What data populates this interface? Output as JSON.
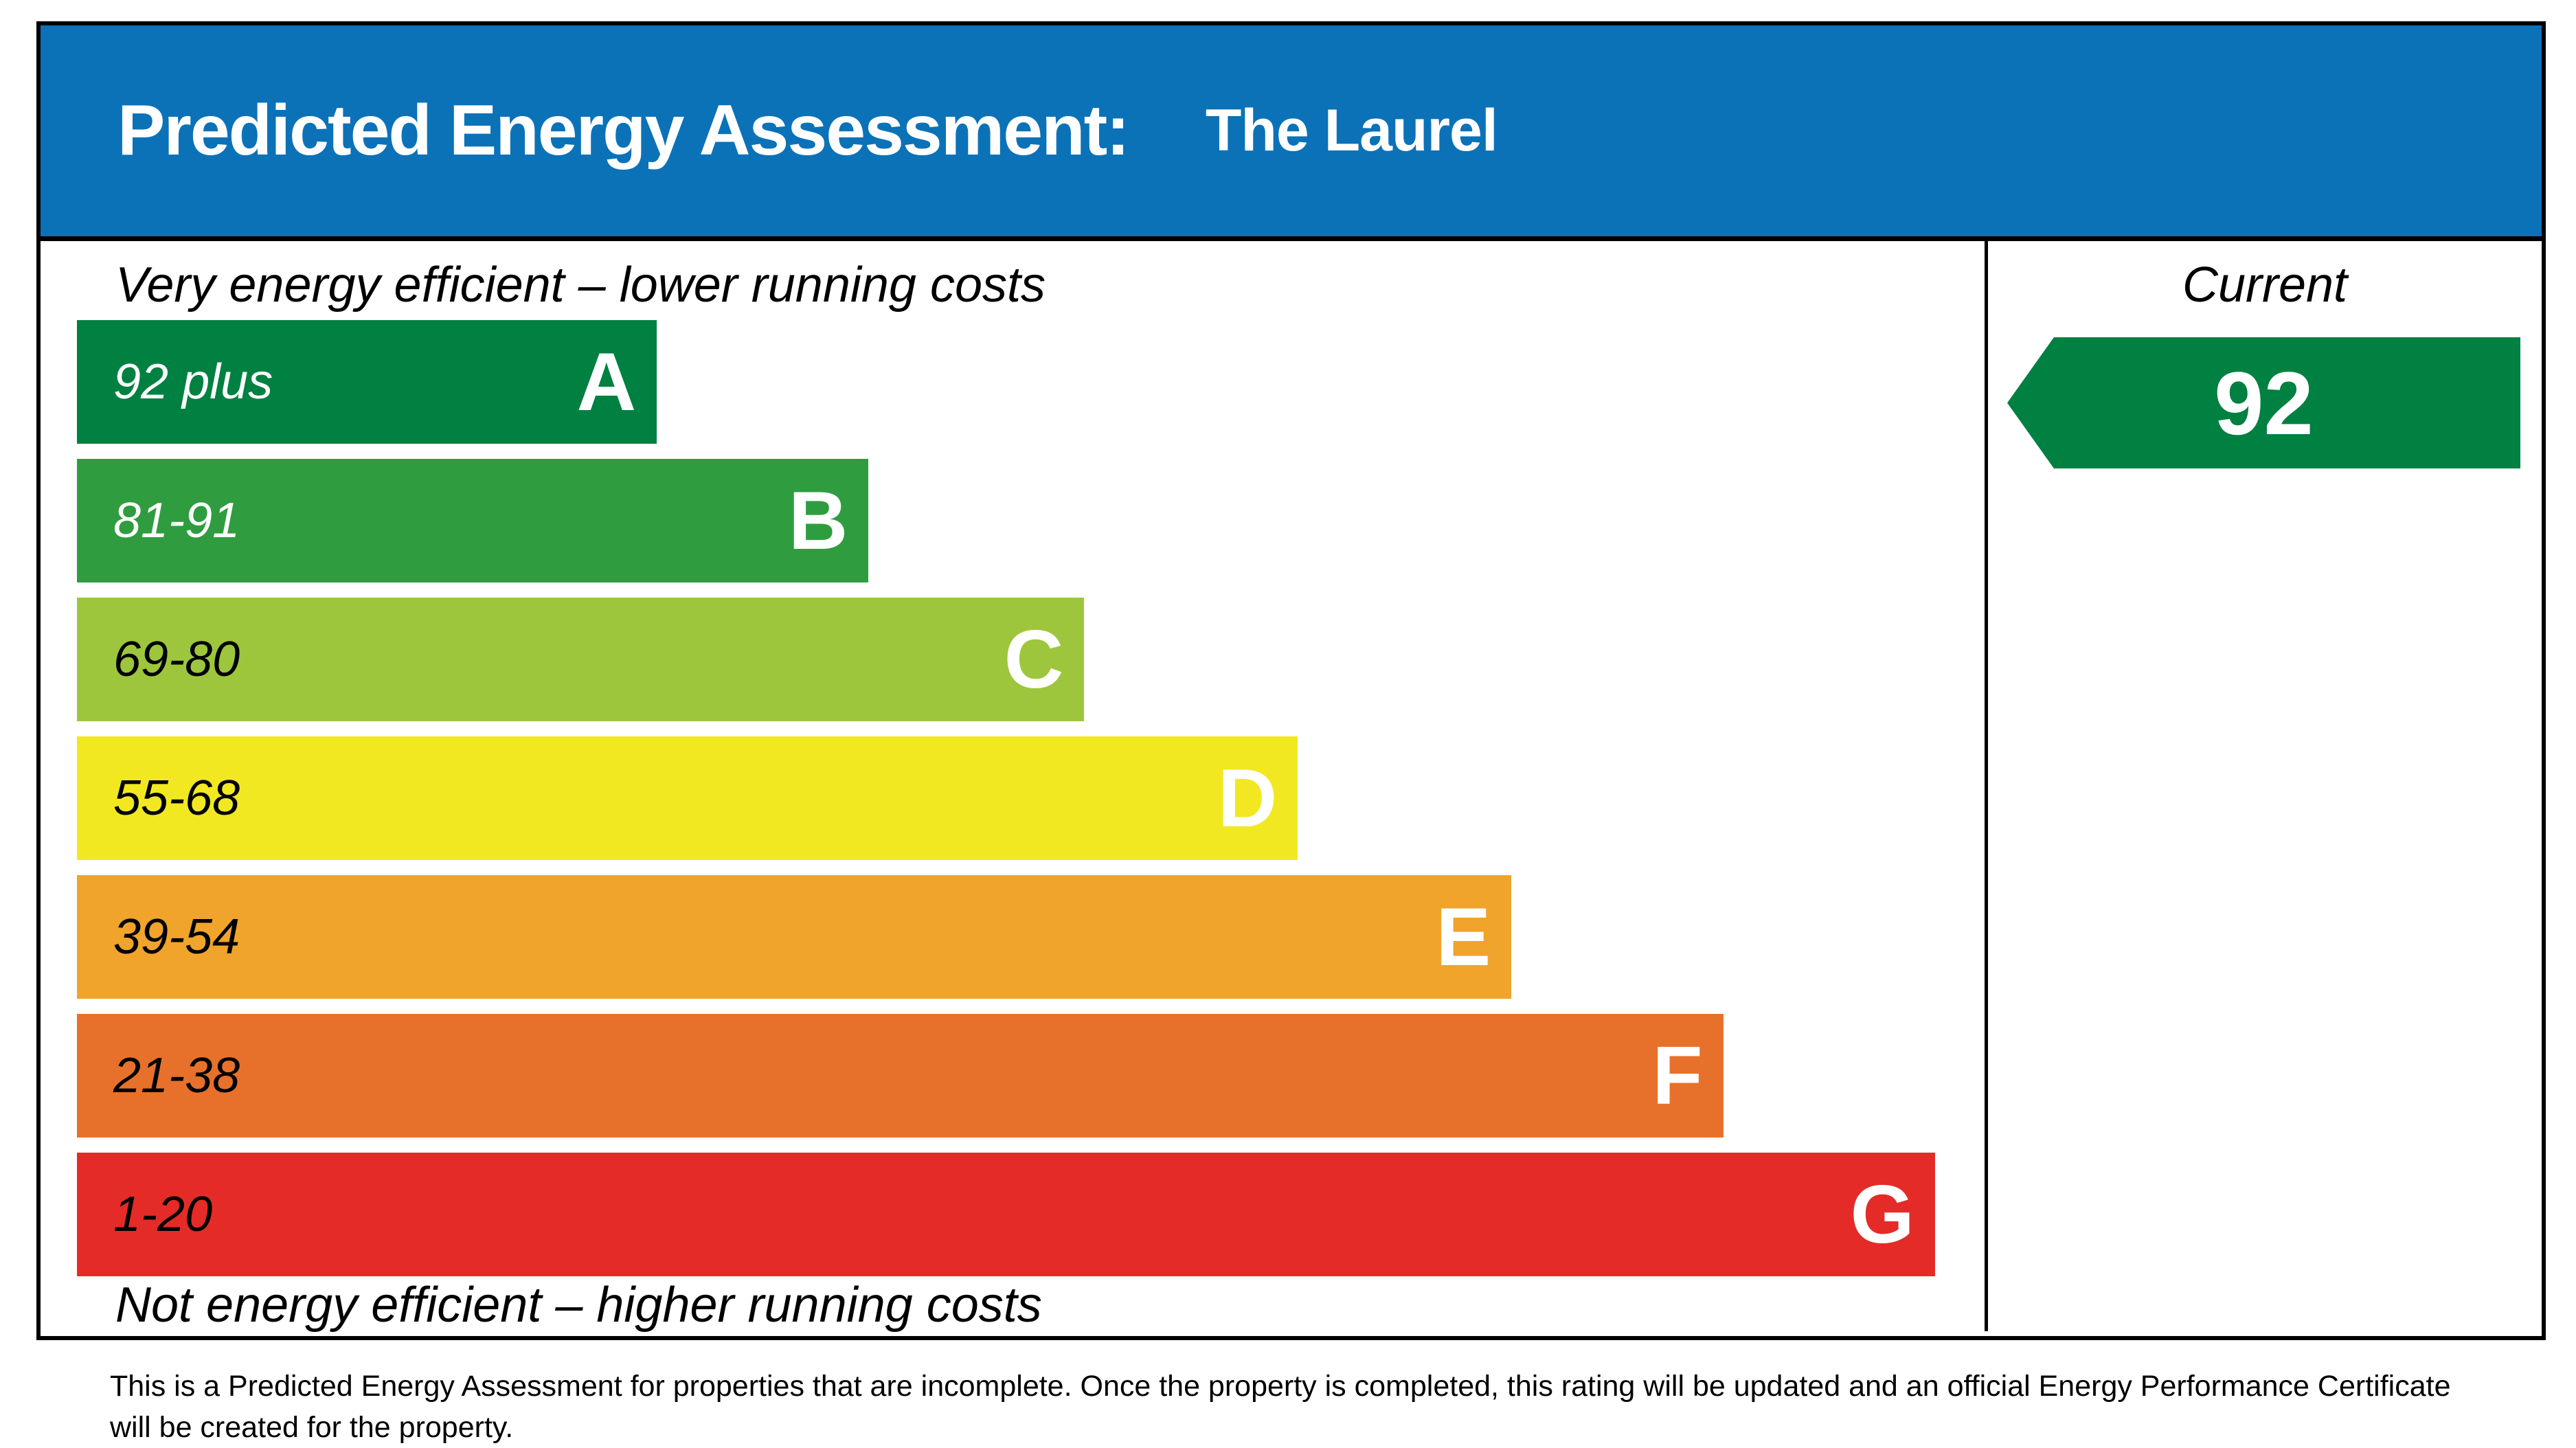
{
  "header": {
    "title": "Predicted Energy Assessment:",
    "property_name": "The Laurel",
    "bg_color": "#0b72b8",
    "text_color": "#ffffff"
  },
  "chart_data": {
    "type": "bar",
    "title": "Predicted Energy Assessment: The Laurel",
    "top_caption": "Very energy efficient – lower running costs",
    "bottom_caption": "Not energy efficient – higher running costs",
    "column_header": "Current",
    "axis_note": "bands widen from best (A) to worst (G)",
    "bands": [
      {
        "letter": "A",
        "range": "92 plus",
        "min": 92,
        "max": 100,
        "color": "#008041",
        "range_label_color": "#ffffff",
        "letter_color": "#ffffff",
        "width_pct": 30.4
      },
      {
        "letter": "B",
        "range": "81-91",
        "min": 81,
        "max": 91,
        "color": "#2f9d3f",
        "range_label_color": "#ffffff",
        "letter_color": "#ffffff",
        "width_pct": 41.5
      },
      {
        "letter": "C",
        "range": "69-80",
        "min": 69,
        "max": 80,
        "color": "#9ec63d",
        "range_label_color": "#000000",
        "letter_color": "#ffffff",
        "width_pct": 52.8
      },
      {
        "letter": "D",
        "range": "55-68",
        "min": 55,
        "max": 68,
        "color": "#f2e821",
        "range_label_color": "#000000",
        "letter_color": "#ffffff",
        "width_pct": 64.0
      },
      {
        "letter": "E",
        "range": "39-54",
        "min": 39,
        "max": 54,
        "color": "#f0a42b",
        "range_label_color": "#000000",
        "letter_color": "#ffffff",
        "width_pct": 75.2
      },
      {
        "letter": "F",
        "range": "21-38",
        "min": 21,
        "max": 38,
        "color": "#e7712b",
        "range_label_color": "#000000",
        "letter_color": "#ffffff",
        "width_pct": 86.3
      },
      {
        "letter": "G",
        "range": "1-20",
        "min": 1,
        "max": 20,
        "color": "#e42b27",
        "range_label_color": "#000000",
        "letter_color": "#ffffff",
        "width_pct": 97.4
      }
    ],
    "current": {
      "value": 92,
      "band": "A",
      "color": "#008041",
      "text_color": "#ffffff"
    }
  },
  "footer": {
    "text": "This is a Predicted Energy Assessment for properties that are incomplete. Once the property is completed, this rating will be updated and an official Energy Performance Certificate will be created for the property."
  }
}
